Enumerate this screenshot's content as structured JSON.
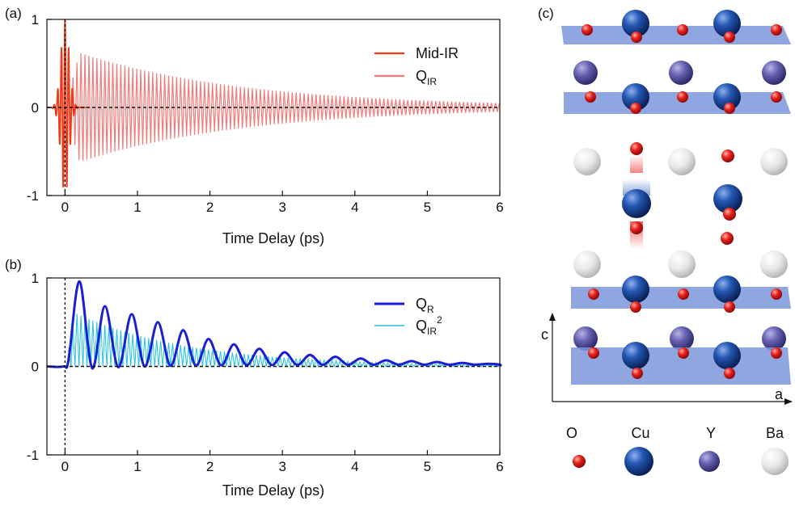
{
  "panels": {
    "a": "(a)",
    "b": "(b)",
    "c": "(c)"
  },
  "colors": {
    "mid_ir": "#f03a17",
    "q_ir": "#f47a7a",
    "q_r": "#1a1fd6",
    "q_ir2": "#1fc2e0",
    "oxygen": "#e21a1a",
    "copper": "#1d4ea8",
    "yttrium": "#5f5ba8",
    "barium": "#e6e6e6",
    "plane": "#7c96db"
  },
  "chart_data": [
    {
      "id": "a",
      "type": "line",
      "xlabel": "Time Delay (ps)",
      "ylabel": "",
      "xlim": [
        -0.25,
        6
      ],
      "ylim": [
        -1,
        1
      ],
      "xticks": [
        "0",
        "1",
        "2",
        "3",
        "4",
        "5",
        "6"
      ],
      "yticks": [
        "-1",
        "0",
        "1"
      ],
      "zero_lines": {
        "horizontal_y": 0,
        "vertical_x": 0,
        "style": "dashed"
      },
      "series": [
        {
          "name": "Mid-IR",
          "legend_text": "Mid-IR",
          "color": "#f03a17",
          "model": {
            "kind": "gaussian_pulse",
            "center_ps": 0.0,
            "width_ps": 0.08,
            "amplitude": 1.0,
            "period_ps": 0.05
          }
        },
        {
          "name": "Q_IR",
          "legend_main": "Q",
          "legend_sub": "IR",
          "color": "#f47a7a",
          "model": {
            "kind": "damped_oscillation",
            "start_ps": 0.0,
            "rise_ps": 0.2,
            "peak_amplitude": 0.62,
            "decay_ps": 2.3,
            "period_ps": 0.055
          }
        }
      ]
    },
    {
      "id": "b",
      "type": "line",
      "xlabel": "Time Delay (ps)",
      "ylabel": "",
      "xlim": [
        -0.25,
        6
      ],
      "ylim": [
        -1,
        1
      ],
      "xticks": [
        "0",
        "1",
        "2",
        "3",
        "4",
        "5",
        "6"
      ],
      "yticks": [
        "-1",
        "0",
        "1"
      ],
      "zero_lines": {
        "horizontal_y": 0,
        "vertical_x": 0,
        "style": "dashed"
      },
      "series": [
        {
          "name": "Q_R",
          "legend_main": "Q",
          "legend_sub": "R",
          "color": "#1a1fd6",
          "peaks": [
            {
              "x": 0.2,
              "y": 0.96
            },
            {
              "x": 0.55,
              "y": 0.68
            },
            {
              "x": 0.92,
              "y": 0.59
            },
            {
              "x": 1.28,
              "y": 0.5
            },
            {
              "x": 1.63,
              "y": 0.41
            },
            {
              "x": 1.98,
              "y": 0.31
            },
            {
              "x": 2.33,
              "y": 0.25
            },
            {
              "x": 2.68,
              "y": 0.2
            },
            {
              "x": 3.03,
              "y": 0.16
            },
            {
              "x": 3.38,
              "y": 0.13
            },
            {
              "x": 3.73,
              "y": 0.11
            },
            {
              "x": 4.08,
              "y": 0.09
            },
            {
              "x": 4.43,
              "y": 0.07
            },
            {
              "x": 4.78,
              "y": 0.06
            },
            {
              "x": 5.13,
              "y": 0.05
            },
            {
              "x": 5.48,
              "y": 0.04
            },
            {
              "x": 5.83,
              "y": 0.03
            }
          ]
        },
        {
          "name": "Q_IR^2",
          "legend_main": "Q",
          "legend_sub": "IR",
          "legend_sup": "2",
          "color": "#1fc2e0",
          "model": {
            "kind": "squared_damped_oscillation",
            "start_ps": 0.0,
            "peak_amplitude": 0.6,
            "decay_ps": 1.6,
            "period_ps": 0.055
          }
        }
      ]
    }
  ],
  "structure": {
    "axis_c": "c",
    "axis_a": "a",
    "legend": [
      {
        "label": "O",
        "key": "oxygen"
      },
      {
        "label": "Cu",
        "key": "copper"
      },
      {
        "label": "Y",
        "key": "yttrium"
      },
      {
        "label": "Ba",
        "key": "barium"
      }
    ]
  }
}
